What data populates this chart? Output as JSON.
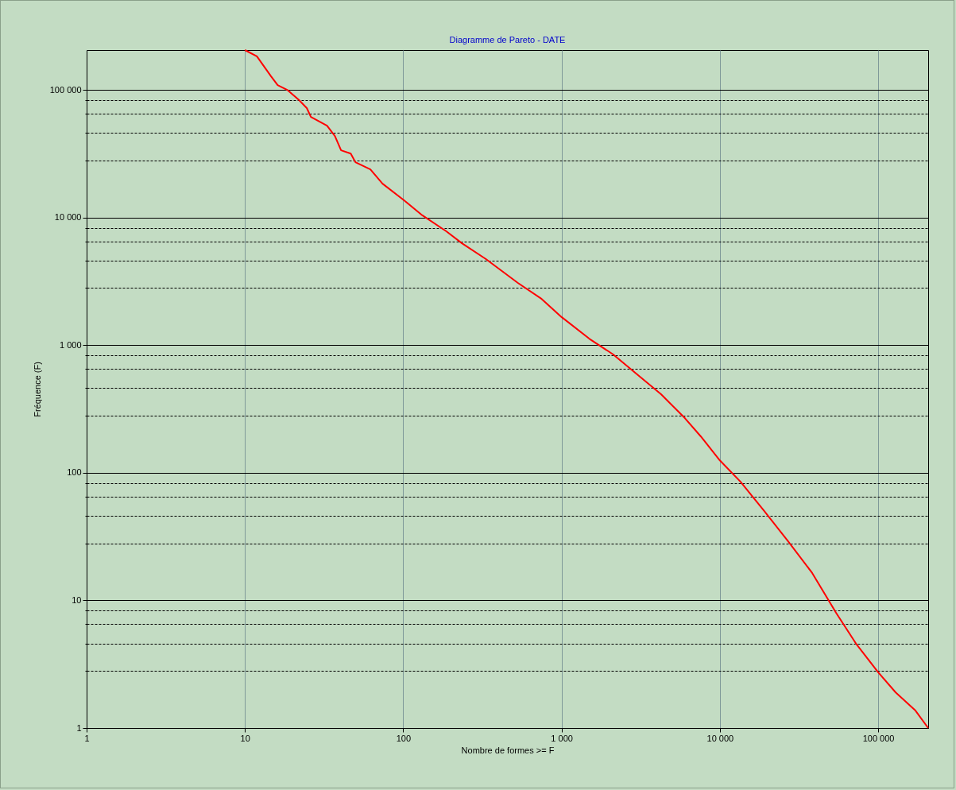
{
  "chart_data": {
    "type": "line",
    "title": "Diagramme de Pareto - DATE",
    "xlabel": "Nombre de formes >= F",
    "ylabel": "Fréquence (F)",
    "log": "xy",
    "grid": true,
    "xlim": [
      1,
      207000
    ],
    "ylim": [
      1,
      205000
    ],
    "xticks": [
      1,
      10,
      100,
      {
        "value": 1000,
        "label": "1 000"
      },
      {
        "value": 10000,
        "label": "10 000"
      },
      {
        "value": 100000,
        "label": "100 000"
      }
    ],
    "yticks": [
      1,
      {
        "value": 2.8,
        "label": null
      },
      {
        "value": 4.6,
        "label": null
      },
      {
        "value": 6.5,
        "label": null
      },
      {
        "value": 8.3,
        "label": null
      },
      10,
      {
        "value": 28,
        "label": null
      },
      {
        "value": 46,
        "label": null
      },
      {
        "value": 65,
        "label": null
      },
      {
        "value": 83,
        "label": null
      },
      100,
      {
        "value": 280,
        "label": null
      },
      {
        "value": 460,
        "label": null
      },
      {
        "value": 650,
        "label": null
      },
      {
        "value": 830,
        "label": null
      },
      {
        "value": 1000,
        "label": "1 000"
      },
      {
        "value": 2800,
        "label": null
      },
      {
        "value": 4600,
        "label": null
      },
      {
        "value": 6500,
        "label": null
      },
      {
        "value": 8300,
        "label": null
      },
      {
        "value": 10000,
        "label": "10 000"
      },
      {
        "value": 28000,
        "label": null
      },
      {
        "value": 46000,
        "label": null
      },
      {
        "value": 65000,
        "label": null
      },
      {
        "value": 83000,
        "label": null
      },
      {
        "value": 100000,
        "label": "100 000"
      }
    ],
    "x": [
      10,
      11.9,
      14.6,
      16.1,
      18.5,
      22,
      24.6,
      26.1,
      33,
      37,
      40.5,
      46.6,
      49.9,
      62,
      74,
      100,
      132,
      187,
      235,
      333,
      530,
      749,
      1000,
      1500,
      2120,
      3000,
      4250,
      6010,
      7570,
      10000,
      13500,
      19100,
      27000,
      38300,
      54200,
      72300,
      100000,
      129000,
      172000,
      207000
    ],
    "series": [
      {
        "color": "#ff0000",
        "values": [
          205000,
          183000,
          128000,
          109000,
          100000,
          83000,
          72000,
          61400,
          52400,
          43500,
          33600,
          31700,
          27100,
          23800,
          18400,
          13800,
          10400,
          7800,
          6280,
          4720,
          3070,
          2300,
          1660,
          1120,
          845,
          590,
          412,
          268,
          193,
          125,
          85,
          50,
          29,
          16.4,
          8,
          4.6,
          2.73,
          1.9,
          1.37,
          1
        ]
      }
    ]
  }
}
